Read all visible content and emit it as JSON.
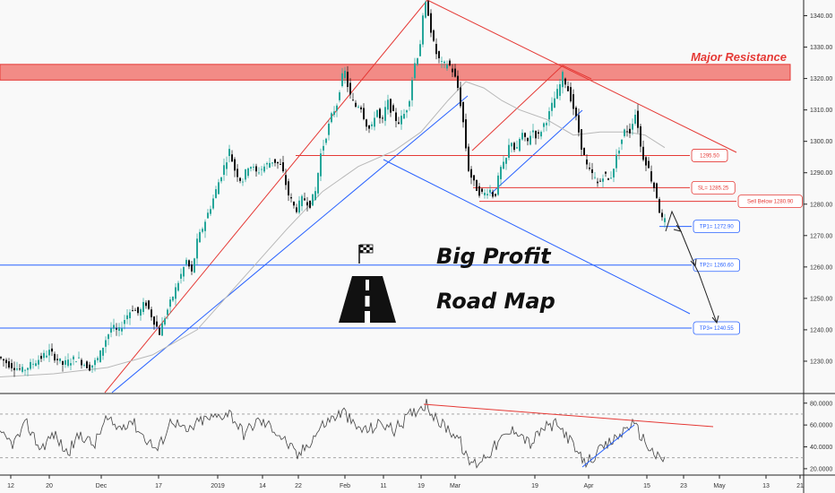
{
  "chart_data": {
    "type": "line",
    "title": "",
    "price_axis": {
      "ylim": [
        1220,
        1345
      ],
      "ticks": [
        "1230.00",
        "1240.00",
        "1250.00",
        "1260.00",
        "1270.00",
        "1280.00",
        "1290.00",
        "1300.00",
        "1310.00",
        "1320.00",
        "1330.00",
        "1340.00"
      ]
    },
    "rsi_axis": {
      "ylim": [
        15,
        88
      ],
      "ticks": [
        "20.0000",
        "40.0000",
        "60.0000",
        "80.0000"
      ],
      "guides": [
        30,
        70
      ]
    },
    "time_axis": {
      "ticks": [
        "12",
        "20",
        "Dec",
        "17",
        "2019",
        "14",
        "22",
        "Feb",
        "11",
        "19",
        "Mar",
        "19",
        "Apr",
        "15",
        "23",
        "May",
        "13",
        "21"
      ]
    },
    "price_series": {
      "name": "",
      "points": [
        [
          0,
          1231
        ],
        [
          10,
          1229
        ],
        [
          25,
          1227
        ],
        [
          40,
          1230
        ],
        [
          55,
          1233
        ],
        [
          70,
          1229
        ],
        [
          85,
          1231
        ],
        [
          100,
          1228
        ],
        [
          110,
          1231
        ],
        [
          118,
          1237
        ],
        [
          125,
          1241
        ],
        [
          132,
          1239
        ],
        [
          140,
          1244
        ],
        [
          148,
          1247
        ],
        [
          155,
          1245
        ],
        [
          162,
          1249
        ],
        [
          170,
          1244
        ],
        [
          178,
          1239
        ],
        [
          185,
          1245
        ],
        [
          192,
          1250
        ],
        [
          200,
          1256
        ],
        [
          208,
          1262
        ],
        [
          214,
          1258
        ],
        [
          220,
          1268
        ],
        [
          228,
          1274
        ],
        [
          236,
          1280
        ],
        [
          244,
          1287
        ],
        [
          250,
          1292
        ],
        [
          256,
          1297
        ],
        [
          262,
          1291
        ],
        [
          270,
          1287
        ],
        [
          278,
          1293
        ],
        [
          286,
          1290
        ],
        [
          295,
          1292
        ],
        [
          305,
          1294
        ],
        [
          314,
          1292
        ],
        [
          322,
          1283
        ],
        [
          330,
          1278
        ],
        [
          338,
          1282
        ],
        [
          346,
          1280
        ],
        [
          352,
          1284
        ],
        [
          358,
          1296
        ],
        [
          364,
          1302
        ],
        [
          370,
          1308
        ],
        [
          376,
          1312
        ],
        [
          381,
          1320
        ],
        [
          385,
          1322
        ],
        [
          390,
          1315
        ],
        [
          396,
          1311
        ],
        [
          402,
          1312
        ],
        [
          408,
          1306
        ],
        [
          414,
          1303
        ],
        [
          420,
          1311
        ],
        [
          426,
          1305
        ],
        [
          432,
          1313
        ],
        [
          438,
          1309
        ],
        [
          444,
          1306
        ],
        [
          450,
          1308
        ],
        [
          456,
          1312
        ],
        [
          462,
          1324
        ],
        [
          468,
          1329
        ],
        [
          472,
          1339
        ],
        [
          476,
          1345
        ],
        [
          480,
          1337
        ],
        [
          484,
          1331
        ],
        [
          488,
          1327
        ],
        [
          494,
          1324
        ],
        [
          500,
          1325
        ],
        [
          506,
          1322
        ],
        [
          512,
          1316
        ],
        [
          518,
          1304
        ],
        [
          522,
          1292
        ],
        [
          528,
          1287
        ],
        [
          534,
          1284
        ],
        [
          540,
          1283
        ],
        [
          546,
          1285
        ],
        [
          552,
          1282
        ],
        [
          558,
          1291
        ],
        [
          564,
          1293
        ],
        [
          570,
          1301
        ],
        [
          576,
          1296
        ],
        [
          582,
          1303
        ],
        [
          588,
          1299
        ],
        [
          594,
          1304
        ],
        [
          600,
          1301
        ],
        [
          606,
          1305
        ],
        [
          612,
          1308
        ],
        [
          618,
          1313
        ],
        [
          624,
          1317
        ],
        [
          628,
          1321
        ],
        [
          632,
          1318
        ],
        [
          638,
          1313
        ],
        [
          644,
          1306
        ],
        [
          650,
          1297
        ],
        [
          656,
          1291
        ],
        [
          662,
          1289
        ],
        [
          668,
          1286
        ],
        [
          674,
          1290
        ],
        [
          680,
          1287
        ],
        [
          686,
          1293
        ],
        [
          692,
          1299
        ],
        [
          698,
          1304
        ],
        [
          704,
          1303
        ],
        [
          708,
          1310
        ],
        [
          712,
          1305
        ],
        [
          716,
          1296
        ],
        [
          722,
          1293
        ],
        [
          728,
          1287
        ],
        [
          732,
          1284
        ],
        [
          736,
          1278
        ],
        [
          740,
          1274
        ],
        [
          744,
          1275
        ]
      ]
    },
    "rsi_series": {
      "name": "",
      "points": [
        [
          0,
          50
        ],
        [
          15,
          43
        ],
        [
          30,
          61
        ],
        [
          45,
          38
        ],
        [
          60,
          52
        ],
        [
          75,
          34
        ],
        [
          90,
          52
        ],
        [
          105,
          41
        ],
        [
          118,
          65
        ],
        [
          132,
          57
        ],
        [
          146,
          65
        ],
        [
          160,
          50
        ],
        [
          176,
          37
        ],
        [
          192,
          66
        ],
        [
          208,
          53
        ],
        [
          224,
          64
        ],
        [
          240,
          67
        ],
        [
          256,
          72
        ],
        [
          272,
          52
        ],
        [
          288,
          64
        ],
        [
          304,
          58
        ],
        [
          320,
          44
        ],
        [
          332,
          31
        ],
        [
          346,
          45
        ],
        [
          360,
          60
        ],
        [
          372,
          67
        ],
        [
          384,
          72
        ],
        [
          396,
          58
        ],
        [
          410,
          55
        ],
        [
          426,
          62
        ],
        [
          440,
          55
        ],
        [
          456,
          68
        ],
        [
          468,
          76
        ],
        [
          476,
          80
        ],
        [
          486,
          65
        ],
        [
          500,
          57
        ],
        [
          512,
          48
        ],
        [
          522,
          27
        ],
        [
          532,
          25
        ],
        [
          546,
          35
        ],
        [
          560,
          47
        ],
        [
          576,
          57
        ],
        [
          592,
          42
        ],
        [
          606,
          57
        ],
        [
          620,
          60
        ],
        [
          632,
          52
        ],
        [
          644,
          34
        ],
        [
          652,
          25
        ],
        [
          664,
          32
        ],
        [
          680,
          43
        ],
        [
          692,
          51
        ],
        [
          704,
          62
        ],
        [
          712,
          55
        ],
        [
          724,
          40
        ],
        [
          734,
          30
        ],
        [
          742,
          28
        ]
      ]
    },
    "sma_series": {
      "name": "",
      "points": [
        [
          0,
          1225
        ],
        [
          60,
          1226
        ],
        [
          120,
          1228
        ],
        [
          170,
          1232
        ],
        [
          220,
          1240
        ],
        [
          270,
          1256
        ],
        [
          320,
          1272
        ],
        [
          360,
          1284
        ],
        [
          400,
          1292
        ],
        [
          440,
          1297
        ],
        [
          470,
          1303
        ],
        [
          500,
          1313
        ],
        [
          520,
          1319
        ],
        [
          540,
          1317
        ],
        [
          560,
          1313
        ],
        [
          580,
          1310
        ],
        [
          610,
          1307
        ],
        [
          640,
          1302
        ],
        [
          670,
          1303
        ],
        [
          700,
          1303
        ],
        [
          720,
          1302
        ],
        [
          742,
          1298
        ]
      ]
    },
    "levels": [
      {
        "label": "1295.50",
        "value": 1295.5,
        "color": "#e53935"
      },
      {
        "label": "SL= 1285.25",
        "value": 1285.25,
        "color": "#e53935"
      },
      {
        "label": "Sell Below 1280.90",
        "value": 1280.9,
        "color": "#e53935"
      },
      {
        "label": "TP1= 1272.90",
        "value": 1272.9,
        "color": "#2962ff"
      },
      {
        "label": "TP2= 1260.60",
        "value": 1260.6,
        "color": "#2962ff"
      },
      {
        "label": "TP3= 1240.55",
        "value": 1240.55,
        "color": "#2962ff"
      }
    ],
    "resistance_zone": {
      "label": "Major Resistance",
      "from": 1319.5,
      "to": 1324.5
    },
    "annotations": [
      "Big Profit",
      "Road Map"
    ],
    "grid": false,
    "legend": "none"
  },
  "colors": {
    "bull": "#26a69a",
    "bear": "#111111",
    "price_line": "#222222",
    "sma": "#b8b8b8",
    "red": "#e53935",
    "blue": "#2962ff",
    "zone_fill": "#f28b86"
  },
  "icons": {
    "flag": "checkered-flag-icon",
    "road": "road-icon"
  }
}
